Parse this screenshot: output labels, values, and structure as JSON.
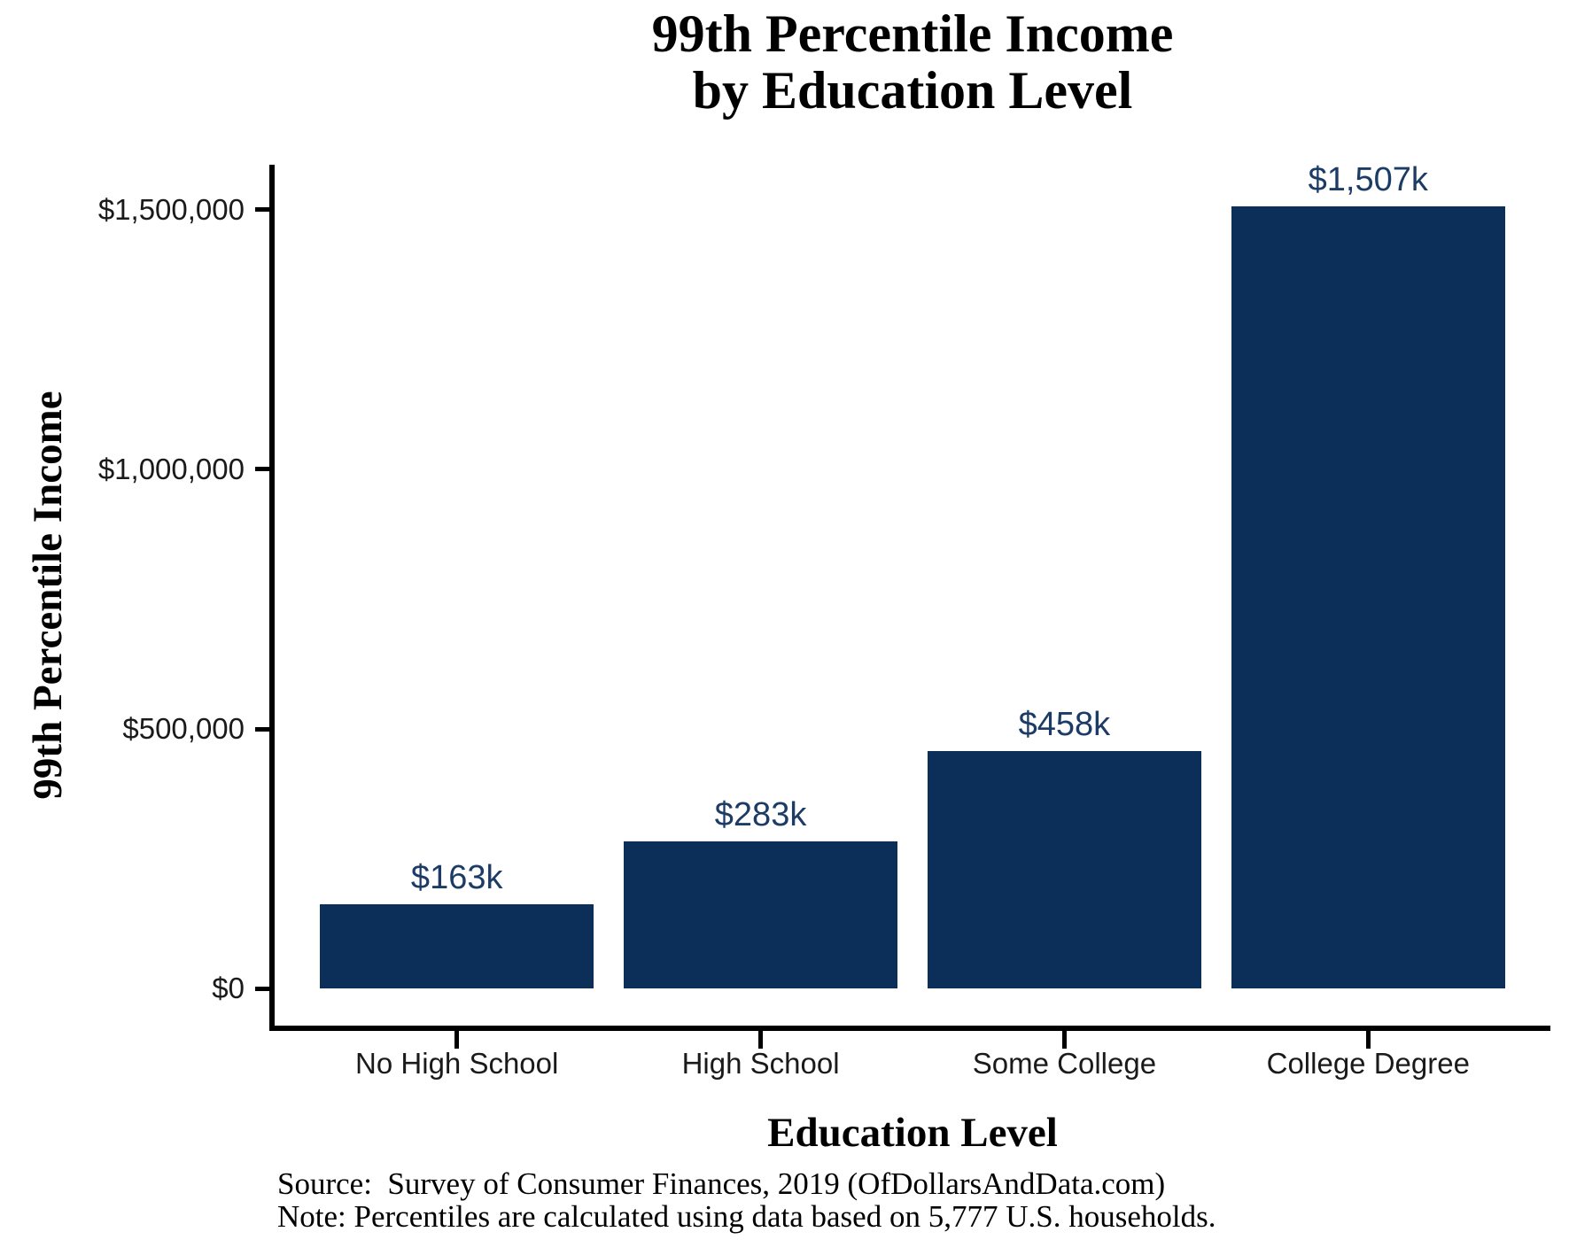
{
  "title": {
    "line1": "99th Percentile Income",
    "line2": "by Education Level"
  },
  "chart_data": {
    "type": "bar",
    "title": "99th Percentile Income by Education Level",
    "categories": [
      "No High School",
      "High School",
      "Some College",
      "College Degree"
    ],
    "values": [
      163000,
      283000,
      458000,
      1507000
    ],
    "bar_value_labels": [
      "$163k",
      "$283k",
      "$458k",
      "$1,507k"
    ],
    "xlabel": "Education Level",
    "ylabel": "99th Percentile Income",
    "yticks": [
      {
        "value": 0,
        "label": "$0"
      },
      {
        "value": 500000,
        "label": "$500,000"
      },
      {
        "value": 1000000,
        "label": "$1,000,000"
      },
      {
        "value": 1500000,
        "label": "$1,500,000"
      }
    ],
    "ylim": [
      0,
      1587000
    ],
    "zero_offset_frac": 0.0432,
    "grid": "off",
    "legend": "none",
    "bar_color": "#0B2F59",
    "bar_label_color": "#1C3C66"
  },
  "footer": {
    "source": "Source:  Survey of Consumer Finances, 2019 (OfDollarsAndData.com)",
    "note": "Note: Percentiles are calculated using data based on 5,777 U.S. households."
  }
}
